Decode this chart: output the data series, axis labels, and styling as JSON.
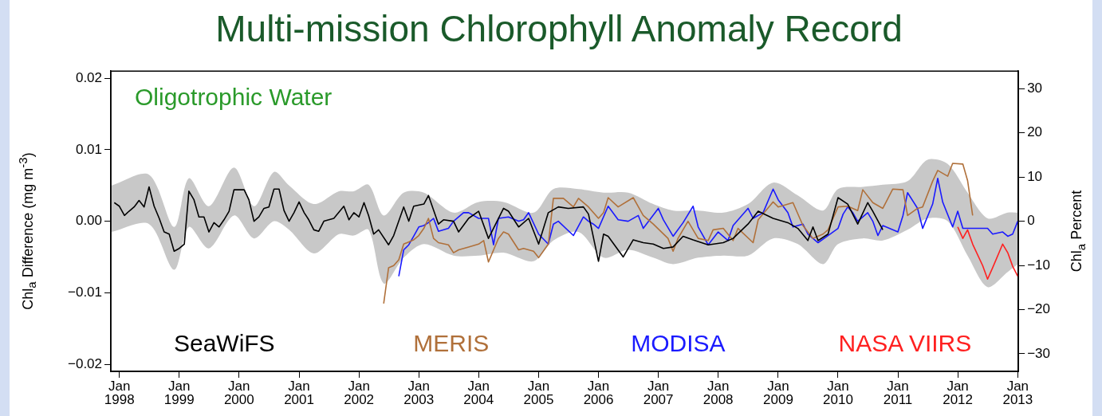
{
  "chart_data": {
    "type": "line",
    "title": "Multi-mission Chlorophyll Anomaly Record",
    "ylabel": "Chl$_{a}$ Difference (mg m$^{-3}$)",
    "y2label": "Chl$_{a}$ Percent",
    "annotations": [
      "Oligotrophic Water"
    ],
    "xlim": [
      "1997-11-10",
      "2013-01-05"
    ],
    "xticks": [
      {
        "value": "1998-01",
        "label": "Jan 1998"
      },
      {
        "value": "1999-01",
        "label": "Jan 1999"
      },
      {
        "value": "2000-01",
        "label": "Jan 2000"
      },
      {
        "value": "2001-01",
        "label": "Jan 2001"
      },
      {
        "value": "2002-01",
        "label": "Jan 2002"
      },
      {
        "value": "2003-01",
        "label": "Jan 2003"
      },
      {
        "value": "2004-01",
        "label": "Jan 2004"
      },
      {
        "value": "2005-01",
        "label": "Jan 2005"
      },
      {
        "value": "2006-01",
        "label": "Jan 2006"
      },
      {
        "value": "2007-01",
        "label": "Jan 2007"
      },
      {
        "value": "2008-01",
        "label": "Jan 2008"
      },
      {
        "value": "2009-01",
        "label": "Jan 2009"
      },
      {
        "value": "2010-01",
        "label": "Jan 2010"
      },
      {
        "value": "2011-01",
        "label": "Jan 2011"
      },
      {
        "value": "2012-01",
        "label": "Jan 2012"
      },
      {
        "value": "2013-01",
        "label": "Jan 2013"
      }
    ],
    "ylim": [
      -0.021,
      0.021
    ],
    "yticks": [
      {
        "value": -0.02,
        "label": "−0.02"
      },
      {
        "value": -0.01,
        "label": "−0.01"
      },
      {
        "value": 0,
        "label": "0.00"
      },
      {
        "value": 0.01,
        "label": "0.01"
      },
      {
        "value": 0.02,
        "label": "0.02"
      }
    ],
    "y2lim": [
      -34,
      34
    ],
    "y2ticks": [
      {
        "value": -30,
        "label": "−30"
      },
      {
        "value": -20,
        "label": "−20"
      },
      {
        "value": -10,
        "label": "−10"
      },
      {
        "value": 0,
        "label": "0"
      },
      10,
      20,
      30
    ],
    "grid": false,
    "legend": "bottom",
    "marker": "none",
    "line_style": "solid",
    "series": [
      {
        "type": "area",
        "color": "#c8c8c8",
        "values": [
          null,
          null,
          null,
          null,
          null,
          null,
          null,
          null,
          null,
          null,
          null,
          null,
          null,
          null,
          null,
          null,
          null,
          null,
          null,
          null,
          null,
          null,
          null,
          null,
          null,
          null,
          null,
          null,
          null,
          null,
          null,
          null,
          null,
          null,
          null,
          null,
          null,
          null,
          null,
          null,
          null,
          null
        ],
        "x": [
          "1997-11-15",
          "1998-07",
          "1998-12",
          "1999-03",
          "1999-07",
          "1999-12",
          "2000-04",
          "2000-08",
          "2000-11",
          "2001-04",
          "2001-09",
          "2001-12",
          "2002-03",
          "2002-06",
          "2002-10",
          "2003-02",
          "2003-08",
          "2004-01",
          "2004-06",
          "2004-12",
          "2005-04",
          "2005-09",
          "2006-02",
          "2006-07",
          "2006-12",
          "2007-04",
          "2007-09",
          "2008-02",
          "2008-07",
          "2008-12",
          "2009-05",
          "2009-10",
          "2010-01",
          "2010-06",
          "2010-10",
          "2011-03",
          "2011-07",
          "2011-11",
          "2012-03",
          "2012-07",
          "2012-11",
          "2013-01"
        ],
        "upper": [
          0.005,
          0.0065,
          -0.0008,
          0.006,
          0.0021,
          0.0075,
          0.0021,
          0.0069,
          0.005,
          0.0024,
          0.0042,
          0.0042,
          0.0051,
          0.0008,
          0.004,
          0.004,
          0.0012,
          0.0027,
          0.0027,
          0.0012,
          0.0045,
          0.0045,
          0.004,
          0.004,
          0.0024,
          0.0015,
          0.0015,
          0.0012,
          0.0024,
          0.0054,
          0.0036,
          0.0015,
          0.0045,
          0.0048,
          0.0051,
          0.0056,
          0.0086,
          0.008,
          0.004,
          0.0004,
          0.0012,
          0.0012
        ],
        "lower": [
          -0.0015,
          -0.0004,
          -0.0068,
          -0.0008,
          -0.0038,
          0.0008,
          -0.0024,
          0,
          -0.0012,
          -0.0045,
          -0.0018,
          -0.002,
          -0.0012,
          -0.0087,
          -0.0051,
          -0.0032,
          -0.0048,
          -0.0048,
          -0.0044,
          -0.0056,
          -0.0027,
          -0.0015,
          -0.0051,
          -0.004,
          -0.0051,
          -0.006,
          -0.0051,
          -0.0048,
          -0.0048,
          -0.0024,
          -0.0032,
          -0.006,
          -0.0032,
          -0.0024,
          -0.0027,
          -0.0012,
          0.0004,
          0,
          -0.0048,
          -0.0092,
          -0.0071,
          -0.006
        ]
      },
      {
        "name": "SeaWiFS",
        "color": "#000000",
        "x": [
          "1997-12",
          "1998-01",
          "1998-02",
          "1998-03",
          "1998-04",
          "1998-05",
          "1998-06",
          "1998-07",
          "1998-08",
          "1998-09",
          "1998-10",
          "1998-11",
          "1998-12",
          "1999-01",
          "1999-02",
          "1999-03",
          "1999-04",
          "1999-05",
          "1999-06",
          "1999-07",
          "1999-08",
          "1999-09",
          "1999-10",
          "1999-11",
          "1999-12",
          "2000-01",
          "2000-02",
          "2000-03",
          "2000-04",
          "2000-05",
          "2000-06",
          "2000-07",
          "2000-08",
          "2000-09",
          "2000-10",
          "2000-11",
          "2000-12",
          "2001-01",
          "2001-02",
          "2001-03",
          "2001-04",
          "2001-05",
          "2001-06",
          "2001-08",
          "2001-10",
          "2001-11",
          "2001-12",
          "2002-01",
          "2002-02",
          "2002-03",
          "2002-04",
          "2002-05",
          "2002-07",
          "2002-08",
          "2002-10",
          "2002-11",
          "2002-12",
          "2003-02",
          "2003-03",
          "2003-05",
          "2003-06",
          "2003-08",
          "2003-09",
          "2003-11",
          "2004-01",
          "2004-03",
          "2004-06",
          "2004-07",
          "2004-09",
          "2004-11",
          "2005-01",
          "2005-03",
          "2005-05",
          "2005-07",
          "2005-10",
          "2005-11",
          "2006-01",
          "2006-02",
          "2006-03",
          "2006-06",
          "2006-08",
          "2006-10",
          "2006-12",
          "2007-02",
          "2007-04",
          "2007-06",
          "2007-08",
          "2007-11",
          "2008-02",
          "2008-04",
          "2008-07",
          "2008-09",
          "2008-12",
          "2009-03",
          "2009-05",
          "2009-07",
          "2009-08",
          "2009-09",
          "2009-11",
          "2010-01",
          "2010-03",
          "2010-05",
          "2010-07",
          "2010-08",
          "2010-10"
        ],
        "values": [
          0.0026,
          0.0021,
          0.0008,
          0.0014,
          0.002,
          0.0029,
          0.002,
          0.0048,
          0.0021,
          0.0004,
          -0.0015,
          -0.0018,
          -0.0042,
          -0.0038,
          -0.0032,
          0.0042,
          0.003,
          0.0006,
          0.0006,
          -0.0015,
          -0.0002,
          -0.0008,
          0.0002,
          0.0014,
          0.0044,
          0.0044,
          0.0044,
          0.003,
          0,
          0.0006,
          0.0018,
          0.002,
          0.0045,
          0.0045,
          0.0015,
          0,
          0.0012,
          0.0027,
          0.0012,
          0.0002,
          -0.0012,
          -0.0014,
          0,
          0.0004,
          0.0021,
          0.0002,
          0.0012,
          0.0006,
          0.0026,
          0.0008,
          -0.0018,
          -0.0012,
          -0.0033,
          -0.002,
          0.002,
          0,
          0.0021,
          0.0024,
          0.0036,
          -0.0004,
          0.0002,
          0,
          -0.0015,
          0.0004,
          0.0014,
          -0.0024,
          0.0018,
          0.0014,
          -0.0008,
          0.0004,
          -0.0032,
          0.0012,
          0.002,
          0.0018,
          0.002,
          0.001,
          -0.0056,
          -0.0018,
          -0.0021,
          -0.005,
          -0.0026,
          -0.003,
          -0.0032,
          -0.0038,
          -0.0036,
          -0.0021,
          -0.0026,
          -0.0033,
          -0.003,
          -0.0024,
          -0.0004,
          0.0014,
          0.0004,
          -0.0002,
          -0.001,
          -0.0027,
          -0.0008,
          -0.0027,
          -0.0018,
          0.0033,
          0.0024,
          -0.0004,
          0.0026,
          0.0014,
          -0.0012
        ]
      },
      {
        "name": "MERIS",
        "color": "#b0703a",
        "x": [
          "2002-06",
          "2002-07",
          "2002-08",
          "2002-09",
          "2002-10",
          "2002-12",
          "2003-01",
          "2003-02",
          "2003-03",
          "2003-04",
          "2003-05",
          "2003-07",
          "2003-08",
          "2003-09",
          "2003-11",
          "2004-01",
          "2004-02",
          "2004-03",
          "2004-05",
          "2004-06",
          "2004-07",
          "2004-09",
          "2004-10",
          "2004-12",
          "2005-01",
          "2005-03",
          "2005-04",
          "2005-06",
          "2005-08",
          "2005-09",
          "2005-11",
          "2006-01",
          "2006-02",
          "2006-03",
          "2006-05",
          "2006-08",
          "2006-10",
          "2006-12",
          "2007-03",
          "2007-04",
          "2007-05",
          "2007-07",
          "2007-09",
          "2007-11",
          "2007-12",
          "2008-02",
          "2008-04",
          "2008-05",
          "2008-08",
          "2008-09",
          "2008-12",
          "2009-01",
          "2009-04",
          "2009-06",
          "2009-08",
          "2009-10",
          "2009-11",
          "2010-01",
          "2010-03",
          "2010-05",
          "2010-06",
          "2010-08",
          "2010-10",
          "2010-12",
          "2011-02",
          "2011-03",
          "2011-05",
          "2011-06",
          "2011-08",
          "2011-09",
          "2011-11",
          "2011-12",
          "2012-02",
          "2012-03",
          "2012-04"
        ],
        "values": [
          -0.0115,
          -0.0065,
          -0.0062,
          -0.0054,
          -0.0032,
          -0.0026,
          -0.002,
          -0.001,
          0.0004,
          -0.0024,
          -0.003,
          -0.0033,
          -0.0044,
          -0.004,
          -0.0036,
          -0.0032,
          -0.0027,
          -0.0057,
          -0.0024,
          -0.0015,
          -0.0018,
          -0.004,
          -0.0038,
          -0.0042,
          -0.0051,
          -0.0032,
          0.0032,
          0.0032,
          0.002,
          0.0032,
          0.002,
          0.0004,
          0.0012,
          0.0033,
          0.002,
          0.0033,
          0.0008,
          -0.0004,
          -0.0024,
          -0.0042,
          -0.0024,
          0,
          -0.0024,
          -0.0027,
          -0.0012,
          -0.001,
          -0.0027,
          -0.001,
          -0.003,
          0.0002,
          0.0027,
          0.002,
          0.0026,
          -0.0006,
          -0.0024,
          -0.0018,
          -0.0012,
          0.002,
          0.0021,
          0.0015,
          0.0044,
          0.0026,
          0.0018,
          0.0045,
          0.0044,
          0.0008,
          0.0018,
          0.002,
          0.0056,
          0.0071,
          0.0063,
          0.0081,
          0.008,
          0.0057,
          0.0008
        ]
      },
      {
        "name": "MODISA",
        "color": "#1a1aff",
        "x": [
          "2002-09",
          "2002-10",
          "2002-11",
          "2002-12",
          "2003-01",
          "2003-02",
          "2003-03",
          "2003-04",
          "2003-05",
          "2003-07",
          "2003-08",
          "2003-10",
          "2003-11",
          "2004-01",
          "2004-03",
          "2004-04",
          "2004-05",
          "2004-07",
          "2004-09",
          "2004-10",
          "2004-11",
          "2005-01",
          "2005-03",
          "2005-04",
          "2005-05",
          "2005-08",
          "2005-10",
          "2005-11",
          "2005-12",
          "2006-01",
          "2006-03",
          "2006-05",
          "2006-07",
          "2006-09",
          "2006-10",
          "2007-01",
          "2007-02",
          "2007-04",
          "2007-06",
          "2007-08",
          "2007-09",
          "2007-11",
          "2008-01",
          "2008-03",
          "2008-04",
          "2008-07",
          "2008-08",
          "2008-10",
          "2008-12",
          "2009-01",
          "2009-03",
          "2009-04",
          "2009-06",
          "2009-07",
          "2009-09",
          "2009-11",
          "2010-01",
          "2010-02",
          "2010-03",
          "2010-04",
          "2010-05",
          "2010-07",
          "2010-08",
          "2010-09",
          "2010-10",
          "2011-01",
          "2011-02",
          "2011-03",
          "2011-05",
          "2011-06",
          "2011-08",
          "2011-09",
          "2011-10",
          "2011-12",
          "2012-01",
          "2012-02",
          "2012-04",
          "2012-06",
          "2012-07",
          "2012-08",
          "2012-10",
          "2012-11",
          "2012-12",
          "2013-01"
        ],
        "values": [
          -0.0077,
          -0.004,
          -0.0033,
          -0.0021,
          -0.0008,
          -0.0006,
          -0.0002,
          0.0004,
          -0.0014,
          -0.001,
          0,
          0.0012,
          0.0012,
          0.0004,
          0.0004,
          -0.0033,
          0.0004,
          0.0006,
          0,
          0.0002,
          0.0012,
          -0.0018,
          -0.0032,
          -0.0004,
          0,
          -0.002,
          0.0006,
          0,
          -0.0004,
          -0.001,
          0.0021,
          0.0002,
          0,
          0.0008,
          -0.001,
          0.0018,
          0.0002,
          -0.0021,
          -0.0002,
          0.0021,
          -0.0008,
          -0.0033,
          -0.0015,
          -0.0027,
          -0.0006,
          0.0018,
          0.0004,
          0.0012,
          0.0045,
          0.003,
          0.0012,
          -0.0008,
          -0.0004,
          -0.0018,
          -0.003,
          -0.002,
          -0.001,
          0.001,
          0.002,
          0.0012,
          0,
          0.0012,
          0,
          -0.002,
          -0.0006,
          -0.0015,
          0.0008,
          0.004,
          0.0018,
          -0.001,
          0.0024,
          0.006,
          0.0027,
          -0.0008,
          0.0014,
          -0.001,
          -0.001,
          -0.001,
          -0.001,
          -0.0018,
          -0.0015,
          -0.0021,
          -0.0018,
          0
        ]
      },
      {
        "name": "NASA VIIRS",
        "color": "#ff2020",
        "x": [
          "2012-01",
          "2012-02",
          "2012-03",
          "2012-04",
          "2012-06",
          "2012-07",
          "2012-08",
          "2012-10",
          "2012-11",
          "2012-12",
          "2013-01"
        ],
        "values": [
          -0.0008,
          -0.0024,
          -0.0012,
          -0.0032,
          -0.0062,
          -0.0081,
          -0.0065,
          -0.0032,
          -0.0044,
          -0.0063,
          -0.0077
        ]
      }
    ]
  }
}
